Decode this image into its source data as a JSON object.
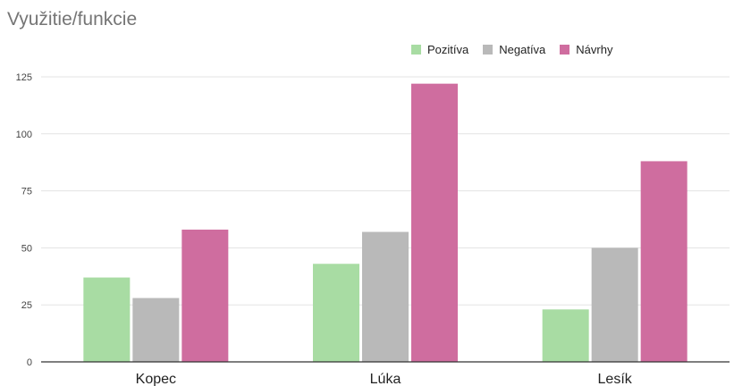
{
  "chart_data": {
    "type": "bar",
    "title": "Využitie/funkcie",
    "categories": [
      "Kopec",
      "Lúka",
      "Lesík"
    ],
    "series": [
      {
        "name": "Pozitíva",
        "color": "#a8dca3",
        "values": [
          37,
          43,
          23
        ]
      },
      {
        "name": "Negatíva",
        "color": "#b9b9b9",
        "values": [
          28,
          57,
          50
        ]
      },
      {
        "name": "Návrhy",
        "color": "#cf6d9f",
        "values": [
          58,
          122,
          88
        ]
      }
    ],
    "yticks": [
      "0",
      "25",
      "50",
      "75",
      "100",
      "125"
    ],
    "ylim": [
      0,
      125
    ],
    "grid": true,
    "legend_position": "top-right"
  }
}
